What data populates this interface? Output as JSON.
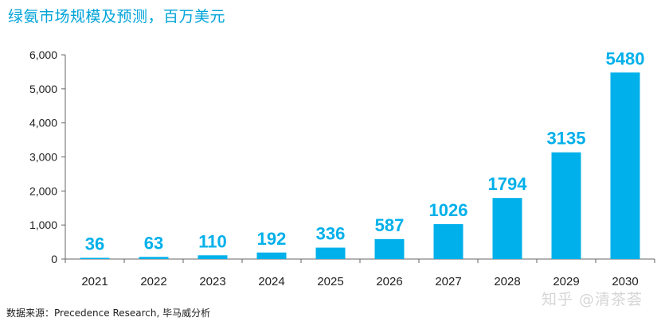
{
  "title": "绿氨市场规模及预测，百万美元",
  "source": "数据来源：Precedence Research, 毕马威分析",
  "watermark": "知乎 @清茶荟",
  "colors": {
    "bar": "#00b0ea",
    "title": "#00a3d9",
    "axis": "#555555",
    "text": "#222222"
  },
  "chart_data": {
    "type": "bar",
    "categories": [
      "2021",
      "2022",
      "2023",
      "2024",
      "2025",
      "2026",
      "2027",
      "2028",
      "2029",
      "2030"
    ],
    "values": [
      36,
      63,
      110,
      192,
      336,
      587,
      1026,
      1794,
      3135,
      5480
    ],
    "data_labels": [
      "36",
      "63",
      "110",
      "192",
      "336",
      "587",
      "1026",
      "1794",
      "3135",
      "5480"
    ],
    "ylim": [
      0,
      6000
    ],
    "yticks": [
      0,
      1000,
      2000,
      3000,
      4000,
      5000,
      6000
    ],
    "ytick_labels": [
      "0",
      "1,000",
      "2,000",
      "3,000",
      "4,000",
      "5,000",
      "6,000"
    ],
    "title": "绿氨市场规模及预测，百万美元",
    "xlabel": "",
    "ylabel": "",
    "grid": false,
    "legend": "none"
  }
}
